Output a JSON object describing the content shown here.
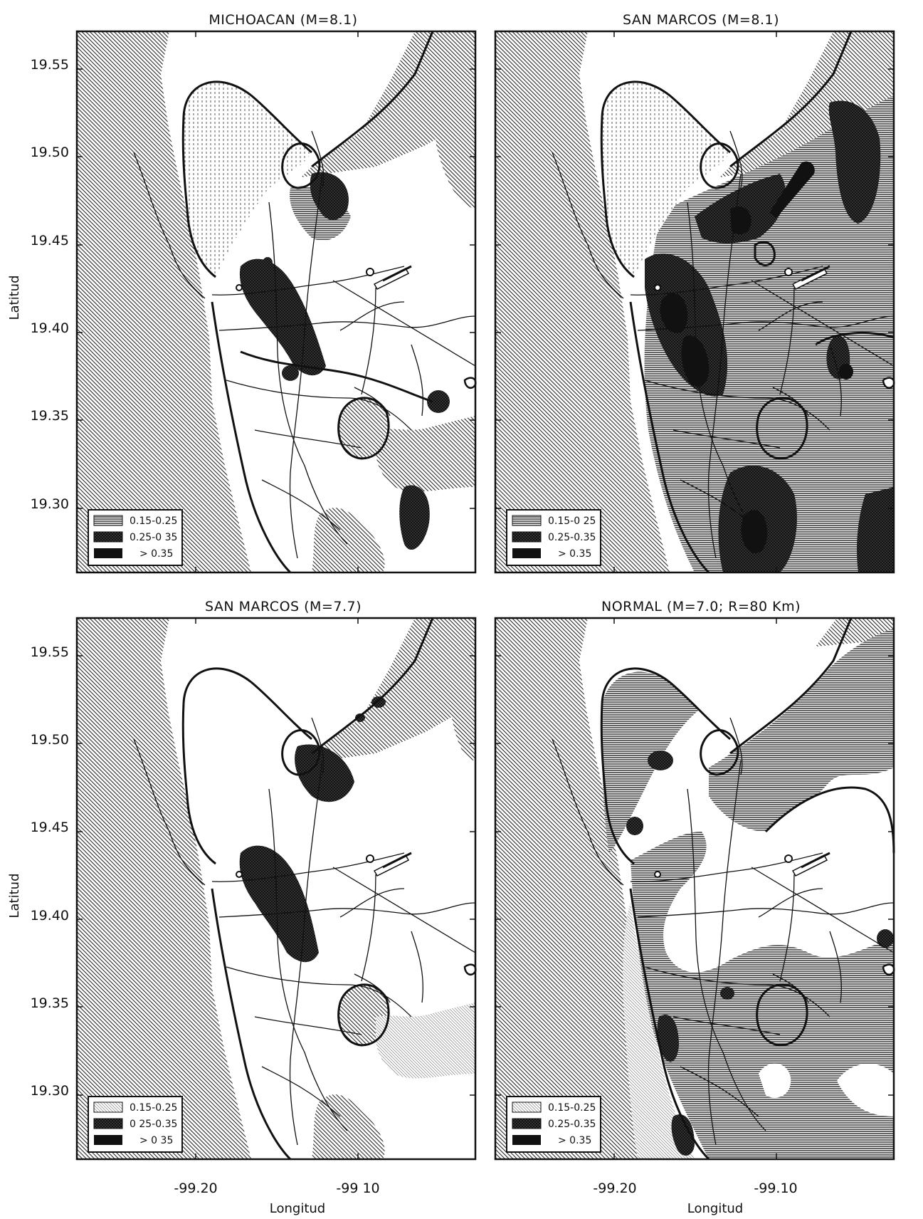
{
  "figure": {
    "ylabel": "Latitud",
    "xlabel": "Longitud",
    "lat_ticks": [
      "19.55",
      "19.50",
      "19.45",
      "19.40",
      "19.35",
      "19.30"
    ],
    "lon_ticks_left": [
      "-99.20",
      "-99 10"
    ],
    "lon_ticks_right": [
      "-99.20",
      "-99.10"
    ]
  },
  "panels": [
    {
      "title": "MICHOACAN (M=8.1)",
      "legend": [
        "0.15-0.25",
        "0.25-0 35",
        "> 0.35"
      ]
    },
    {
      "title": "SAN MARCOS (M=8.1)",
      "legend": [
        "0.15-0 25",
        "0.25-0.35",
        "> 0.35"
      ]
    },
    {
      "title": "SAN MARCOS (M=7.7)",
      "legend": [
        "0.15-0.25",
        "0 25-0.35",
        "> 0 35"
      ]
    },
    {
      "title": "NORMAL (M=7.0; R=80 Km)",
      "legend": [
        "0.15-0.25",
        "0.25-0.35",
        "> 0.35"
      ]
    }
  ],
  "chart_data": {
    "type": "contour-map",
    "xlabel": "Longitud",
    "ylabel": "Latitud",
    "x_ticks": [
      -99.2,
      -99.1
    ],
    "y_ticks": [
      19.55,
      19.5,
      19.45,
      19.4,
      19.35,
      19.3
    ],
    "xlim": [
      -99.27,
      -99.03
    ],
    "ylim": [
      19.25,
      19.57
    ],
    "legend_classes": [
      "0.15-0.25",
      "0.25-0.35",
      "> 0.35"
    ],
    "legend_position": "bottom-left",
    "panels": [
      "MICHOACAN (M=8.1)",
      "SAN MARCOS (M=8.1)",
      "SAN MARCOS (M=7.7)",
      "NORMAL (M=7.0; R=80 Km)"
    ],
    "colors": {
      "hatch_light": "#7a7a7a",
      "hatch_mid": "#4a4a4a",
      "dark": "#111111",
      "paper": "#ffffff"
    }
  }
}
